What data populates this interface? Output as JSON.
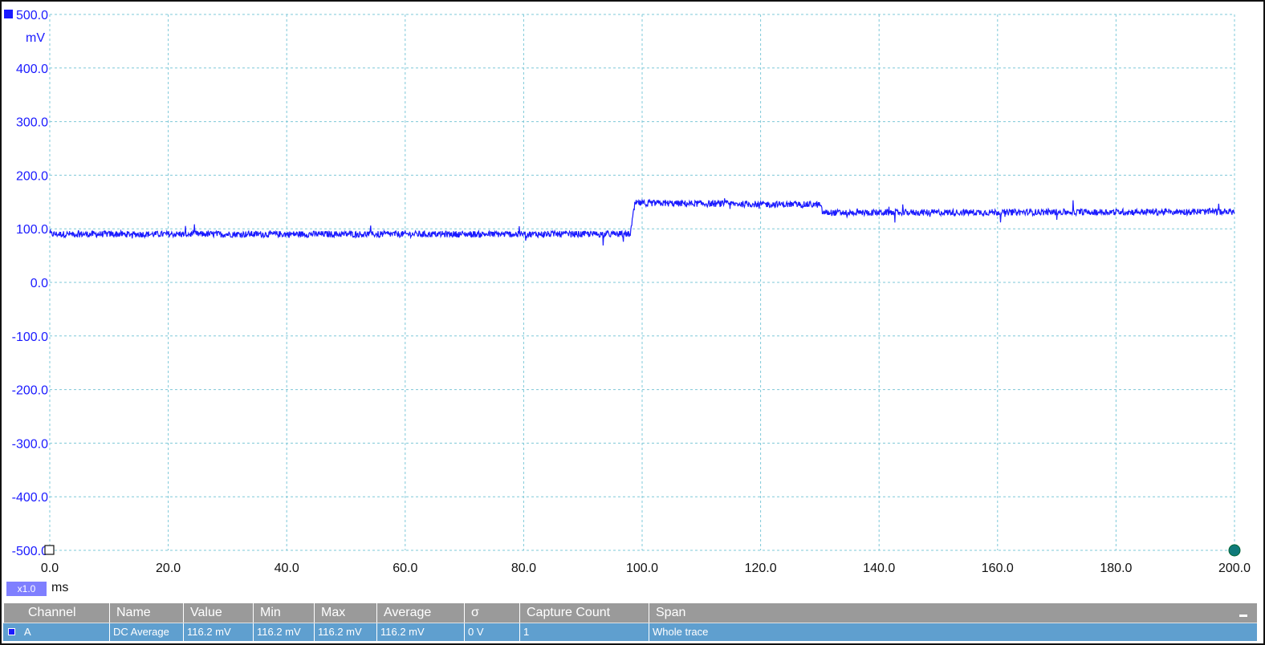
{
  "colors": {
    "trace": "#1a1aff",
    "grid": "#7ec8d8",
    "axis_y_text": "#1a1aff",
    "table_header": "#9a9a9a",
    "table_row": "#5f9fcf",
    "end_marker": "#0f7a7a"
  },
  "scope": {
    "y_unit": "mV",
    "x_unit": "ms",
    "zoom_label": "x1.0"
  },
  "chart_data": {
    "type": "line",
    "title": "",
    "xlabel": "ms",
    "ylabel": "mV",
    "xlim": [
      0,
      200
    ],
    "ylim": [
      -500,
      500
    ],
    "grid": true,
    "x_ticks": [
      "0.0",
      "20.0",
      "40.0",
      "60.0",
      "80.0",
      "100.0",
      "120.0",
      "140.0",
      "160.0",
      "180.0",
      "200.0"
    ],
    "y_ticks": [
      "500.0",
      "400.0",
      "300.0",
      "200.0",
      "100.0",
      "0.0",
      "-100.0",
      "-200.0",
      "-300.0",
      "-400.0",
      "-500.0"
    ],
    "series": [
      {
        "name": "A",
        "x": [
          0,
          98,
          98.8,
          130,
          130.5,
          200
        ],
        "y": [
          90,
          90,
          148,
          145,
          130,
          132
        ],
        "noise_mV": 6
      }
    ]
  },
  "table": {
    "headers": [
      "Channel",
      "Name",
      "Value",
      "Min",
      "Max",
      "Average",
      "σ",
      "Capture Count",
      "Span"
    ],
    "rows": [
      [
        "A",
        "DC Average",
        "116.2 mV",
        "116.2 mV",
        "116.2 mV",
        "116.2 mV",
        "0 V",
        "1",
        "Whole trace"
      ]
    ]
  }
}
